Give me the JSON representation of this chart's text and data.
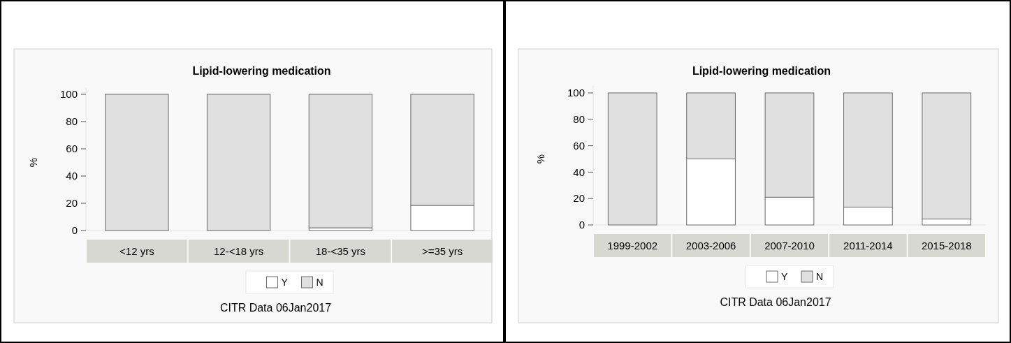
{
  "chart_data": [
    {
      "type": "bar",
      "title": "Lipid-lowering medication",
      "ylabel": "%",
      "categories": [
        "<12 yrs",
        "12-<18 yrs",
        "18-<35 yrs",
        ">=35 yrs"
      ],
      "stacked": true,
      "ylim": [
        0,
        100
      ],
      "yticks": [
        0,
        20,
        40,
        60,
        80,
        100
      ],
      "grid": false,
      "legend": "bottom",
      "annotations": [
        "CITR  Data 06Jan2017"
      ],
      "series": [
        {
          "name": "Y",
          "color": "#ffffff",
          "values": [
            0,
            0,
            2,
            18.5
          ]
        },
        {
          "name": "N",
          "color": "#e0e0e0",
          "values": [
            100,
            100,
            98,
            81.5
          ]
        }
      ]
    },
    {
      "type": "bar",
      "title": "Lipid-lowering medication",
      "ylabel": "%",
      "categories": [
        "1999-2002",
        "2003-2006",
        "2007-2010",
        "2011-2014",
        "2015-2018"
      ],
      "stacked": true,
      "ylim": [
        0,
        100
      ],
      "yticks": [
        0,
        20,
        40,
        60,
        80,
        100
      ],
      "grid": false,
      "legend": "bottom",
      "annotations": [
        "CITR  Data 06Jan2017"
      ],
      "series": [
        {
          "name": "Y",
          "color": "#ffffff",
          "values": [
            0,
            50,
            21,
            13.5,
            4.5
          ]
        },
        {
          "name": "N",
          "color": "#e0e0e0",
          "values": [
            100,
            50,
            79,
            86.5,
            95.5
          ]
        }
      ]
    }
  ]
}
